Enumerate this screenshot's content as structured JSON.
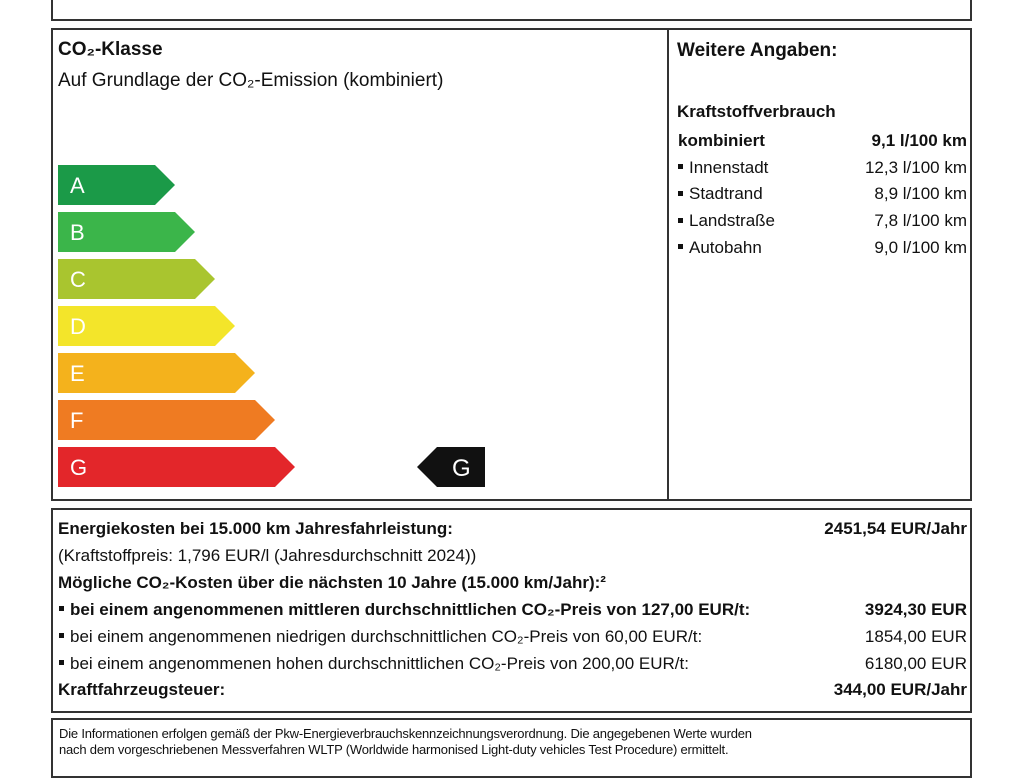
{
  "co2_class": {
    "title": "CO₂-Klasse",
    "subtitle": "Auf Grundlage der CO₂-Emission (kombiniert)",
    "classes": [
      {
        "label": "A",
        "color": "#1b9a48"
      },
      {
        "label": "B",
        "color": "#3bb54a"
      },
      {
        "label": "C",
        "color": "#a9c52f"
      },
      {
        "label": "D",
        "color": "#f3e52a"
      },
      {
        "label": "E",
        "color": "#f4b21c"
      },
      {
        "label": "F",
        "color": "#ef7b22"
      },
      {
        "label": "G",
        "color": "#e3262a"
      }
    ],
    "current": "G"
  },
  "further_info": {
    "title": "Weitere Angaben:",
    "fuel_title": "Kraftstoffverbrauch",
    "rows": [
      {
        "label": "kombiniert",
        "value": "9,1 l/100 km",
        "bold": true
      },
      {
        "label": "Innenstadt",
        "value": "12,3 l/100 km"
      },
      {
        "label": "Stadtrand",
        "value": "8,9 l/100 km"
      },
      {
        "label": "Landstraße",
        "value": "7,8 l/100 km"
      },
      {
        "label": "Autobahn",
        "value": "9,0 l/100 km"
      }
    ]
  },
  "costs": [
    {
      "label": "Energiekosten bei 15.000 km Jahresfahrleistung:",
      "value": "2451,54 EUR/Jahr",
      "bold": true
    },
    {
      "label": "(Kraftstoffpreis: 1,796 EUR/l (Jahresdurchschnitt 2024))"
    },
    {
      "label": "Mögliche CO₂-Kosten über die nächsten 10 Jahre (15.000 km/Jahr):²",
      "bold": true
    },
    {
      "label": "bei einem angenommenen mittleren durchschnittlichen CO₂-Preis von 127,00 EUR/t:",
      "value": "3924,30 EUR",
      "bold": true,
      "bullet": true
    },
    {
      "label": "bei einem angenommenen niedrigen durchschnittlichen CO₂-Preis von 60,00 EUR/t:",
      "value": "1854,00 EUR",
      "bullet": true
    },
    {
      "label": "bei einem angenommenen hohen durchschnittlichen CO₂-Preis von 200,00 EUR/t:",
      "value": "6180,00 EUR",
      "bullet": true
    },
    {
      "label": "Kraftfahrzeugsteuer:",
      "value": "344,00 EUR/Jahr",
      "bold": true
    }
  ],
  "footnote": [
    "Die Informationen erfolgen gemäß der Pkw-Energieverbrauchskennzeichnungsverordnung. Die angegebenen Werte wurden",
    "nach dem vorgeschriebenen Messverfahren WLTP (Worldwide harmonised Light-duty vehicles Test Procedure) ermittelt."
  ]
}
